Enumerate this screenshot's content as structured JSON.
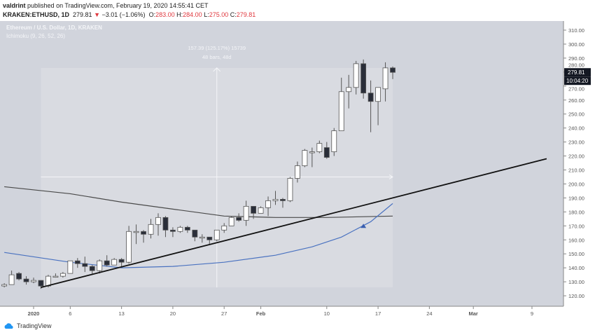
{
  "header": {
    "author": "valdrint",
    "published_text": "published on TradingView.com, February 19, 2020 14:55:41 CET",
    "symbol": "KRAKEN:ETHUSD, 1D",
    "last": "279.81",
    "change": "−3.01 (−1.06%)",
    "open_label": "O:",
    "open": "283.00",
    "high_label": "H:",
    "high": "284.00",
    "low_label": "L:",
    "low": "275.00",
    "close_label": "C:",
    "close": "279.81"
  },
  "legend": {
    "title": "Ethereum / U.S. Dollar, 1D, KRAKEN",
    "indicator": "Ichimoku (9, 26, 52, 26)"
  },
  "measure": {
    "line1": "157.39 (125.17%) 15739",
    "line2": "48 bars, 48d",
    "from_date": "2020-01-02",
    "to_date": "2020-02-19",
    "low": 126,
    "high": 283
  },
  "price_axis": {
    "ticks": [
      "310.00",
      "300.00",
      "290.00",
      "280.00",
      "270.00",
      "260.00",
      "250.00",
      "240.00",
      "230.00",
      "220.00",
      "210.00",
      "200.00",
      "190.00",
      "180.00",
      "170.00",
      "160.00",
      "150.00",
      "140.00",
      "130.00",
      "120.00"
    ],
    "current_price": "279.81",
    "countdown": "10:04:20"
  },
  "time_axis": {
    "ticks": [
      {
        "label": "2020",
        "date": "2020-01-01"
      },
      {
        "label": "6",
        "date": "2020-01-06"
      },
      {
        "label": "13",
        "date": "2020-01-13"
      },
      {
        "label": "20",
        "date": "2020-01-20"
      },
      {
        "label": "27",
        "date": "2020-01-27"
      },
      {
        "label": "Feb",
        "date": "2020-02-01"
      },
      {
        "label": "10",
        "date": "2020-02-10"
      },
      {
        "label": "17",
        "date": "2020-02-17"
      },
      {
        "label": "24",
        "date": "2020-02-24"
      },
      {
        "label": "Mar",
        "date": "2020-03-01"
      },
      {
        "label": "9",
        "date": "2020-03-09"
      }
    ]
  },
  "colors": {
    "up": "#ffffff",
    "down": "#2a2e39",
    "ma_slow": "#4a4a4a",
    "ma_fast": "#4a72c0",
    "trendline": "#111111",
    "marker": "#3a5fb0",
    "bg": "#d1d4dc",
    "box": "#d9dbe1"
  },
  "candles": [
    [
      "2019-12-28",
      127,
      129,
      126,
      128
    ],
    [
      "2019-12-29",
      128,
      138,
      128,
      135
    ],
    [
      "2019-12-30",
      136,
      137,
      131,
      132
    ],
    [
      "2019-12-31",
      132,
      134,
      128,
      130
    ],
    [
      "2020-01-01",
      130,
      133,
      129,
      131
    ],
    [
      "2020-01-02",
      131,
      131,
      125,
      127
    ],
    [
      "2020-01-03",
      127,
      135,
      126,
      134
    ],
    [
      "2020-01-04",
      134,
      136,
      133,
      134
    ],
    [
      "2020-01-05",
      134,
      137,
      133,
      136
    ],
    [
      "2020-01-06",
      136,
      145,
      136,
      145
    ],
    [
      "2020-01-07",
      145,
      147,
      140,
      143
    ],
    [
      "2020-01-08",
      143,
      148,
      137,
      141
    ],
    [
      "2020-01-09",
      141,
      142,
      135,
      138
    ],
    [
      "2020-01-10",
      138,
      146,
      136,
      145
    ],
    [
      "2020-01-11",
      145,
      149,
      141,
      142
    ],
    [
      "2020-01-12",
      142,
      147,
      142,
      146
    ],
    [
      "2020-01-13",
      146,
      147,
      141,
      144
    ],
    [
      "2020-01-14",
      144,
      170,
      143,
      166
    ],
    [
      "2020-01-15",
      166,
      171,
      157,
      166
    ],
    [
      "2020-01-16",
      166,
      167,
      158,
      164
    ],
    [
      "2020-01-17",
      164,
      175,
      161,
      171
    ],
    [
      "2020-01-18",
      171,
      179,
      163,
      176
    ],
    [
      "2020-01-19",
      176,
      177,
      162,
      167
    ],
    [
      "2020-01-20",
      167,
      169,
      162,
      166
    ],
    [
      "2020-01-21",
      166,
      170,
      165,
      169
    ],
    [
      "2020-01-22",
      169,
      170,
      165,
      167
    ],
    [
      "2020-01-23",
      167,
      167,
      159,
      162
    ],
    [
      "2020-01-24",
      162,
      164,
      158,
      162
    ],
    [
      "2020-01-25",
      162,
      162,
      157,
      160
    ],
    [
      "2020-01-26",
      160,
      167,
      159,
      167
    ],
    [
      "2020-01-27",
      167,
      172,
      165,
      170
    ],
    [
      "2020-01-28",
      170,
      177,
      170,
      176
    ],
    [
      "2020-01-29",
      176,
      179,
      173,
      174
    ],
    [
      "2020-01-30",
      174,
      188,
      170,
      184
    ],
    [
      "2020-01-31",
      184,
      184,
      175,
      179
    ],
    [
      "2020-02-01",
      179,
      184,
      179,
      183
    ],
    [
      "2020-02-02",
      183,
      191,
      177,
      188
    ],
    [
      "2020-02-03",
      188,
      195,
      185,
      189
    ],
    [
      "2020-02-04",
      189,
      190,
      183,
      188
    ],
    [
      "2020-02-05",
      188,
      205,
      187,
      204
    ],
    [
      "2020-02-06",
      204,
      216,
      201,
      213
    ],
    [
      "2020-02-07",
      213,
      225,
      212,
      224
    ],
    [
      "2020-02-08",
      223,
      226,
      212,
      223
    ],
    [
      "2020-02-09",
      223,
      231,
      222,
      229
    ],
    [
      "2020-02-10",
      226,
      230,
      218,
      219
    ],
    [
      "2020-02-11",
      223,
      240,
      220,
      238
    ],
    [
      "2020-02-12",
      238,
      276,
      238,
      266
    ],
    [
      "2020-02-13",
      266,
      278,
      254,
      269
    ],
    [
      "2020-02-14",
      269,
      288,
      264,
      286
    ],
    [
      "2020-02-15",
      286,
      289,
      261,
      265
    ],
    [
      "2020-02-16",
      265,
      274,
      237,
      259
    ],
    [
      "2020-02-17",
      259,
      269,
      242,
      269
    ],
    [
      "2020-02-18",
      268,
      287,
      259,
      283
    ],
    [
      "2020-02-19",
      283,
      284,
      275,
      279.81
    ]
  ],
  "ma_slow": [
    [
      "2019-12-28",
      198
    ],
    [
      "2020-01-06",
      193
    ],
    [
      "2020-01-13",
      187
    ],
    [
      "2020-01-20",
      182
    ],
    [
      "2020-01-27",
      177
    ],
    [
      "2020-02-03",
      176
    ],
    [
      "2020-02-10",
      176
    ],
    [
      "2020-02-19",
      177
    ]
  ],
  "ma_fast": [
    [
      "2019-12-28",
      151
    ],
    [
      "2020-01-06",
      144
    ],
    [
      "2020-01-13",
      140
    ],
    [
      "2020-01-20",
      141
    ],
    [
      "2020-01-27",
      144
    ],
    [
      "2020-02-03",
      149
    ],
    [
      "2020-02-08",
      155
    ],
    [
      "2020-02-12",
      162
    ],
    [
      "2020-02-16",
      173
    ],
    [
      "2020-02-19",
      186
    ]
  ],
  "trendline": [
    [
      "2020-01-02",
      126
    ],
    [
      "2020-03-11",
      218
    ]
  ],
  "marker": {
    "date": "2020-02-15",
    "price": 170
  }
}
